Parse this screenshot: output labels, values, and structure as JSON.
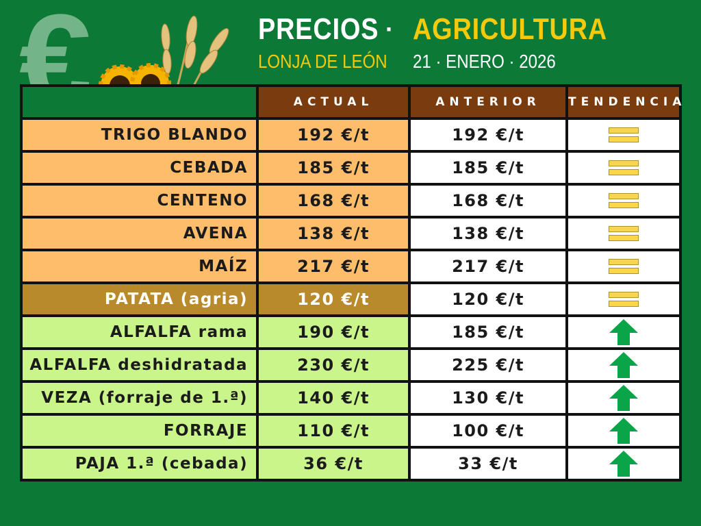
{
  "header": {
    "title_left": "PRECIOS",
    "separator": "·",
    "title_right": "AGRICULTURA",
    "subtitle": "LONJA DE LEÓN",
    "date": "21 · ENERO · 2026"
  },
  "table": {
    "columns": [
      "",
      "ACTUAL",
      "ANTERIOR",
      "TENDENCIA"
    ],
    "rows": [
      {
        "name": "TRIGO BLANDO",
        "actual": "192 €/t",
        "anterior": "192 €/t",
        "tendencia": "igual",
        "group": "orange"
      },
      {
        "name": "CEBADA",
        "actual": "185 €/t",
        "anterior": "185 €/t",
        "tendencia": "igual",
        "group": "orange"
      },
      {
        "name": "CENTENO",
        "actual": "168 €/t",
        "anterior": "168 €/t",
        "tendencia": "igual",
        "group": "orange"
      },
      {
        "name": "AVENA",
        "actual": "138 €/t",
        "anterior": "138 €/t",
        "tendencia": "igual",
        "group": "orange"
      },
      {
        "name": "MAÍZ",
        "actual": "217 €/t",
        "anterior": "217 €/t",
        "tendencia": "igual",
        "group": "orange"
      },
      {
        "name": "PATATA (agria)",
        "actual": "120 €/t",
        "anterior": "120 €/t",
        "tendencia": "igual",
        "group": "brown"
      },
      {
        "name": "ALFALFA rama",
        "actual": "190 €/t",
        "anterior": "185 €/t",
        "tendencia": "sube",
        "group": "green"
      },
      {
        "name": "ALFALFA deshidratada",
        "actual": "230 €/t",
        "anterior": "225 €/t",
        "tendencia": "sube",
        "group": "green"
      },
      {
        "name": "VEZA (forraje de 1.ª)",
        "actual": "140 €/t",
        "anterior": "130 €/t",
        "tendencia": "sube",
        "group": "green"
      },
      {
        "name": "FORRAJE",
        "actual": "110 €/t",
        "anterior": "100 €/t",
        "tendencia": "sube",
        "group": "green"
      },
      {
        "name": "PAJA 1.ª (cebada)",
        "actual": "36 €/t",
        "anterior": "33 €/t",
        "tendencia": "sube",
        "group": "green"
      }
    ]
  },
  "icons": {
    "igual": "equal-bars-icon",
    "sube": "arrow-up-icon",
    "background": "euro-sign-icon",
    "decoration": "sunflower-wheat-icon"
  },
  "colors": {
    "background": "#0c7a36",
    "header_cell": "#7a3b0e",
    "cereal_row": "#fdbd6a",
    "potato_row": "#b98a2b",
    "forage_row": "#c9f58a",
    "title_accent": "#f5c90c",
    "arrow": "#0aa548",
    "equal": "#f9d64a"
  }
}
